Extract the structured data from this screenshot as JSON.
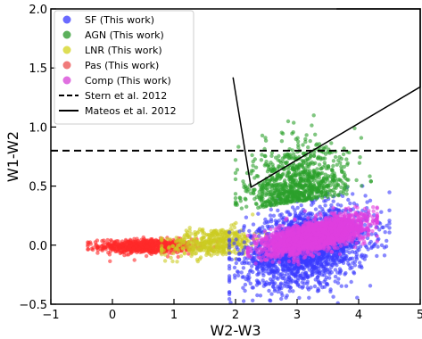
{
  "chart_data": {
    "type": "scatter",
    "title": "",
    "xlabel": "W2-W3",
    "ylabel": "W1-W2",
    "xlim": [
      -1,
      5
    ],
    "ylim": [
      -0.5,
      2.0
    ],
    "xticks": [
      -1,
      0,
      1,
      2,
      3,
      4,
      5
    ],
    "yticks": [
      -0.5,
      0.0,
      0.5,
      1.0,
      1.5,
      2.0
    ],
    "xtick_labels": [
      "−1",
      "0",
      "1",
      "2",
      "3",
      "4",
      "5"
    ],
    "ytick_labels": [
      "−0.5",
      "0.0",
      "0.5",
      "1.0",
      "1.5",
      "2.0"
    ],
    "grid": false,
    "legend_position": "top-left",
    "series": [
      {
        "name": "SF (This work)",
        "color": "#3a3aff",
        "approx_distribution": {
          "x_range": [
            1.9,
            4.4
          ],
          "y_range": [
            -0.45,
            0.55
          ],
          "center": [
            3.2,
            0.0
          ]
        }
      },
      {
        "name": "AGN (This work)",
        "color": "#2ca02c",
        "approx_distribution": {
          "x_range": [
            2.0,
            4.2
          ],
          "y_range": [
            0.1,
            1.2
          ],
          "center": [
            3.0,
            0.45
          ]
        }
      },
      {
        "name": "LNR (This work)",
        "color": "#cccc22",
        "approx_distribution": {
          "x_range": [
            0.8,
            2.8
          ],
          "y_range": [
            -0.1,
            0.25
          ],
          "center": [
            1.6,
            0.05
          ]
        }
      },
      {
        "name": "Pas (This work)",
        "color": "#ff2a2a",
        "approx_distribution": {
          "x_range": [
            -0.4,
            1.6
          ],
          "y_range": [
            -0.12,
            0.08
          ],
          "center": [
            0.5,
            -0.02
          ]
        }
      },
      {
        "name": "Comp (This work)",
        "color": "#e040e0",
        "approx_distribution": {
          "x_range": [
            2.2,
            4.3
          ],
          "y_range": [
            -0.1,
            0.4
          ],
          "center": [
            3.2,
            0.1
          ]
        }
      }
    ],
    "reference_lines": [
      {
        "name": "Stern et al. 2012",
        "style": "dashed",
        "y": 0.8
      },
      {
        "name": "Mateos et al. 2012",
        "style": "solid",
        "polygon": [
          [
            1.96,
            1.42
          ],
          [
            2.25,
            0.49
          ],
          [
            5.0,
            1.34
          ],
          [
            5.0,
            2.0
          ],
          [
            3.64,
            2.0
          ]
        ]
      }
    ],
    "legend_entries": [
      {
        "label": "SF (This work)",
        "marker": "dot",
        "color": "#6a6aff"
      },
      {
        "label": "AGN (This work)",
        "marker": "dot",
        "color": "#5cb05c"
      },
      {
        "label": "LNR (This work)",
        "marker": "dot",
        "color": "#dede55"
      },
      {
        "label": "Pas (This work)",
        "marker": "dot",
        "color": "#f07a7a"
      },
      {
        "label": "Comp (This work)",
        "marker": "dot",
        "color": "#e070e0"
      },
      {
        "label": "Stern et al. 2012",
        "marker": "dashed-line",
        "color": "#000000"
      },
      {
        "label": "Mateos et al. 2012",
        "marker": "solid-line",
        "color": "#000000"
      }
    ]
  }
}
